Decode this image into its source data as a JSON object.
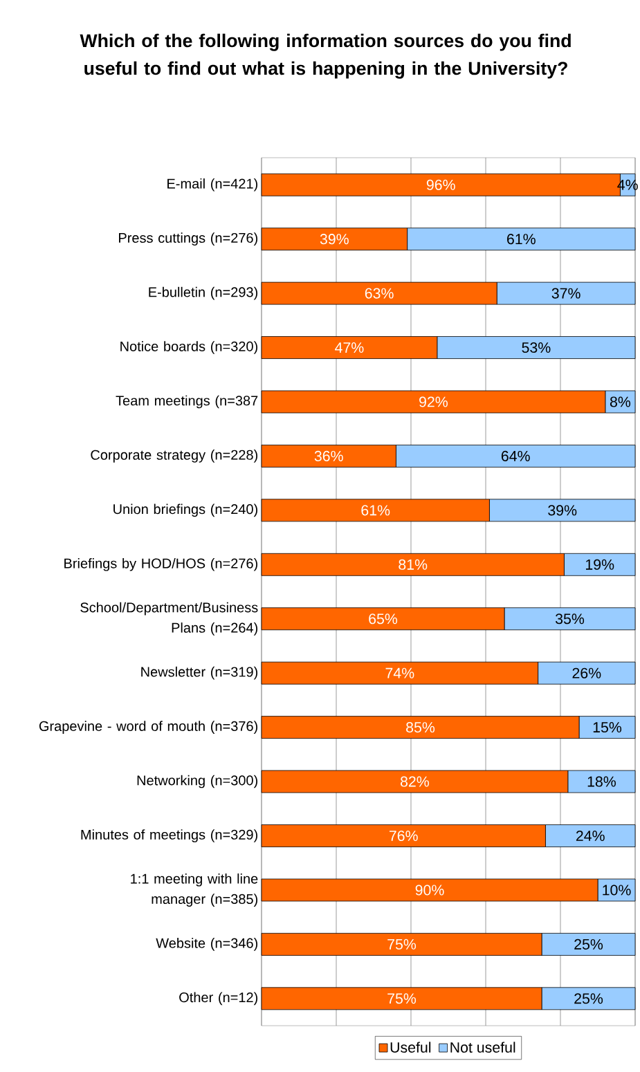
{
  "chart_data": {
    "type": "bar",
    "orientation": "horizontal",
    "stacked": true,
    "title": "Which of the following information sources do you find useful to find out what is happening in the University?",
    "categories": [
      "E-mail (n=421)",
      "Press cuttings (n=276)",
      "E-bulletin (n=293)",
      "Notice boards (n=320)",
      "Team meetings (n=387",
      "Corporate strategy (n=228)",
      "Union briefings (n=240)",
      "Briefings by HOD/HOS (n=276)",
      "School/Department/Business Plans (n=264)",
      "Newsletter (n=319)",
      "Grapevine - word of mouth (n=376)",
      "Networking (n=300)",
      "Minutes of meetings (n=329)",
      "1:1 meeting with line manager (n=385)",
      "Website (n=346)",
      "Other (n=12)"
    ],
    "series": [
      {
        "name": "Useful",
        "color": "#ff6600",
        "values": [
          96,
          39,
          63,
          47,
          92,
          36,
          61,
          81,
          65,
          74,
          85,
          82,
          76,
          90,
          75,
          75
        ],
        "value_labels": [
          "96%",
          "39%",
          "63%",
          "47%",
          "92%",
          "36%",
          "61%",
          "81%",
          "65%",
          "74%",
          "85%",
          "82%",
          "76%",
          "90%",
          "75%",
          "75%"
        ]
      },
      {
        "name": "Not useful",
        "color": "#99ccff",
        "values": [
          4,
          61,
          37,
          53,
          8,
          64,
          39,
          19,
          35,
          26,
          15,
          18,
          24,
          10,
          25,
          25
        ],
        "value_labels": [
          "4%",
          "61%",
          "37%",
          "53%",
          "8%",
          "64%",
          "39%",
          "19%",
          "35%",
          "26%",
          "15%",
          "18%",
          "24%",
          "10%",
          "25%",
          "25%"
        ]
      }
    ],
    "xlim": [
      0,
      100
    ],
    "xticks": [
      {
        "value": 0,
        "label": null
      },
      {
        "value": 20,
        "label": null
      },
      {
        "value": 40,
        "label": null
      },
      {
        "value": 60,
        "label": null
      },
      {
        "value": 80,
        "label": null
      },
      {
        "value": 100,
        "label": null
      }
    ],
    "grid": "x",
    "tick_labels": "y",
    "legend": "bottom"
  }
}
